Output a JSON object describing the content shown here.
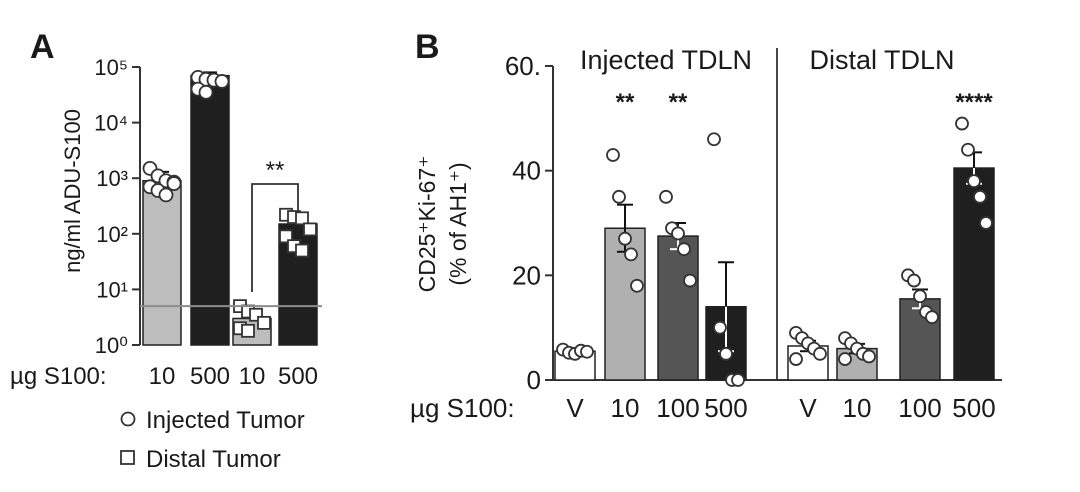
{
  "chart_data": [
    {
      "panel_label": "A",
      "type": "bar",
      "ylabel": "ng/ml ADU-S100",
      "yscale": "log",
      "ylim": [
        1,
        100000
      ],
      "y_ticks": [
        "10⁰",
        "10¹",
        "10²",
        "10³",
        "10⁴",
        "10⁵"
      ],
      "x_prefix": "µg S100:",
      "categories": [
        "10",
        "500",
        "10",
        "500"
      ],
      "reference_line": 5,
      "bars": [
        {
          "group": "Injected Tumor",
          "dose": "10",
          "value": 900,
          "sem_upper": 1300,
          "color": "#bdbdbd",
          "points": [
            1500,
            1100,
            900,
            850,
            700,
            600,
            500,
            800
          ]
        },
        {
          "group": "Injected Tumor",
          "dose": "500",
          "value": 70000,
          "sem_upper": 80000,
          "color": "#1f1f1f",
          "points": [
            65000,
            60000,
            58000,
            55000,
            40000,
            35000
          ]
        },
        {
          "group": "Distal Tumor",
          "dose": "10",
          "value": 3,
          "sem_upper": 4,
          "color": "#bdbdbd",
          "points": [
            5,
            4,
            3.5,
            2.5,
            2,
            1.8
          ]
        },
        {
          "group": "Distal Tumor",
          "dose": "500",
          "value": 150,
          "sem_upper": 210,
          "color": "#1f1f1f",
          "points": [
            220,
            200,
            190,
            120,
            90,
            60,
            50
          ]
        }
      ],
      "significance": {
        "label": "**",
        "between": [
          2,
          3
        ]
      },
      "legend": [
        {
          "marker": "circle",
          "label": "Injected Tumor"
        },
        {
          "marker": "square",
          "label": "Distal Tumor"
        }
      ]
    },
    {
      "panel_label": "B",
      "type": "bar",
      "ylabel_line1": "CD25⁺Ki-67⁺",
      "ylabel_line2": "(% of AH1⁺)",
      "ylim": [
        0,
        60
      ],
      "y_ticks": [
        "0",
        "20",
        "40",
        "60."
      ],
      "x_prefix": "µg S100:",
      "groups": [
        {
          "title": "Injected TDLN",
          "categories": [
            "V",
            "10",
            "100",
            "500"
          ]
        },
        {
          "title": "Distal TDLN",
          "categories": [
            "V",
            "10",
            "100",
            "500"
          ]
        }
      ],
      "bars": [
        {
          "group": "Injected TDLN",
          "dose": "V",
          "value": 5.5,
          "sem": 0.4,
          "color": "#ffffff",
          "points": [
            5.8,
            5.2,
            5.0,
            5.6,
            5.4
          ],
          "sig": ""
        },
        {
          "group": "Injected TDLN",
          "dose": "10",
          "value": 29,
          "sem": 4.5,
          "color": "#b0b0b0",
          "points": [
            43,
            35,
            27,
            24,
            18
          ],
          "sig": "**"
        },
        {
          "group": "Injected TDLN",
          "dose": "100",
          "value": 27.5,
          "sem": 2.5,
          "color": "#555555",
          "points": [
            35,
            29,
            28,
            25,
            19
          ],
          "sig": "**"
        },
        {
          "group": "Injected TDLN",
          "dose": "500",
          "value": 14,
          "sem": 8.5,
          "color": "#1f1f1f",
          "points": [
            46,
            10,
            5,
            0,
            0
          ],
          "sig": ""
        },
        {
          "group": "Distal TDLN",
          "dose": "V",
          "value": 6.5,
          "sem": 1.0,
          "color": "#ffffff",
          "points": [
            9,
            8,
            7,
            6,
            5,
            4
          ],
          "sig": ""
        },
        {
          "group": "Distal TDLN",
          "dose": "10",
          "value": 6,
          "sem": 0.9,
          "color": "#b0b0b0",
          "points": [
            8,
            7,
            6,
            5,
            4.5,
            4
          ],
          "sig": ""
        },
        {
          "group": "Distal TDLN",
          "dose": "100",
          "value": 15.5,
          "sem": 1.8,
          "color": "#555555",
          "points": [
            20,
            19,
            16,
            13,
            12
          ],
          "sig": ""
        },
        {
          "group": "Distal TDLN",
          "dose": "500",
          "value": 40.5,
          "sem": 3.0,
          "color": "#1f1f1f",
          "points": [
            49,
            44,
            38,
            35,
            30
          ],
          "sig": "****"
        }
      ]
    }
  ]
}
